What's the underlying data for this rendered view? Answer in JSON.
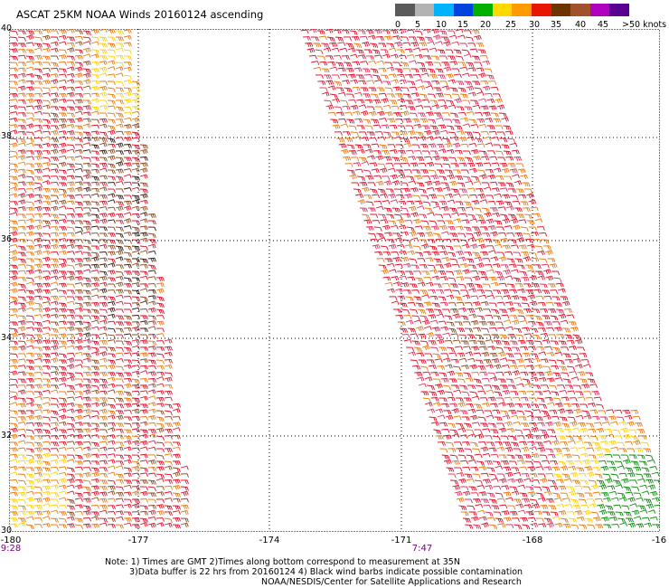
{
  "title": "ASCAT 25KM NOAA Winds 20160124 ascending",
  "legend": {
    "labels": [
      "0",
      "5",
      "10",
      "15",
      "20",
      "25",
      "30",
      "35",
      "40",
      "45"
    ],
    "units": ">50 knots",
    "colors": [
      "#5a5a5a",
      "#b3b3b3",
      "#00b3ff",
      "#0044dd",
      "#00b000",
      "#ffd800",
      "#ff9a00",
      "#e81800",
      "#6e3400",
      "#a0522d",
      "#b000c0",
      "#5a0090"
    ]
  },
  "axes": {
    "lat_labels": [
      "40",
      "38",
      "36",
      "34",
      "32",
      "30"
    ],
    "lon_labels": [
      "-180",
      "-177",
      "-174",
      "-171",
      "-168",
      "-16"
    ]
  },
  "pass_times": [
    "9:28",
    "7:47"
  ],
  "notes": {
    "line1": "Note: 1) Times are GMT 2)Times along bottom correspond to measurement at 35N",
    "line2": "3)Data buffer is 22 hrs from 20160124 4) Black wind barbs indicate possible contamination",
    "line3": "NOAA/NESDIS/Center for Satellite Applications and Research"
  }
}
